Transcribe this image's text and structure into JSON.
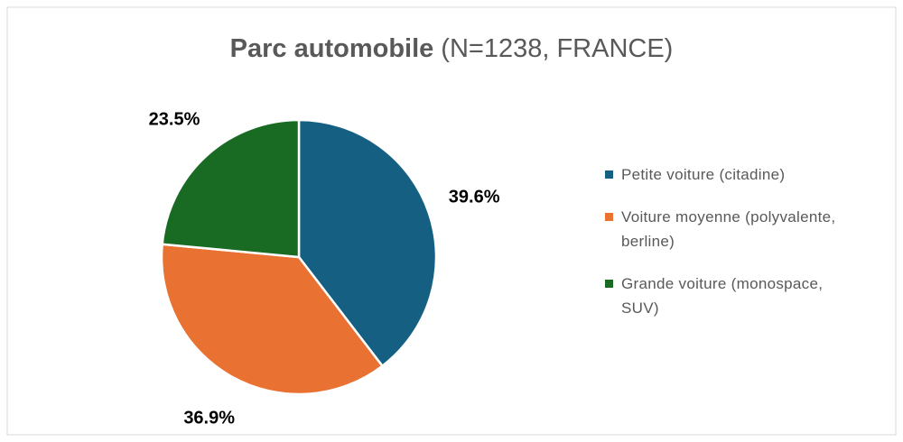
{
  "chart_data": {
    "type": "pie",
    "title": "Parc automobile",
    "title_detail": "(N=1238,  FRANCE)",
    "categories": [
      "Petite voiture (citadine)",
      "Voiture moyenne (polyvalente, berline)",
      "Grande voiture (monospace, SUV)"
    ],
    "values": [
      39.6,
      36.9,
      23.5
    ],
    "value_labels": [
      "39.6%",
      "36.9%",
      "23.5%"
    ],
    "colors": [
      "#156082",
      "#e97132",
      "#196b24"
    ],
    "legend": "right"
  }
}
